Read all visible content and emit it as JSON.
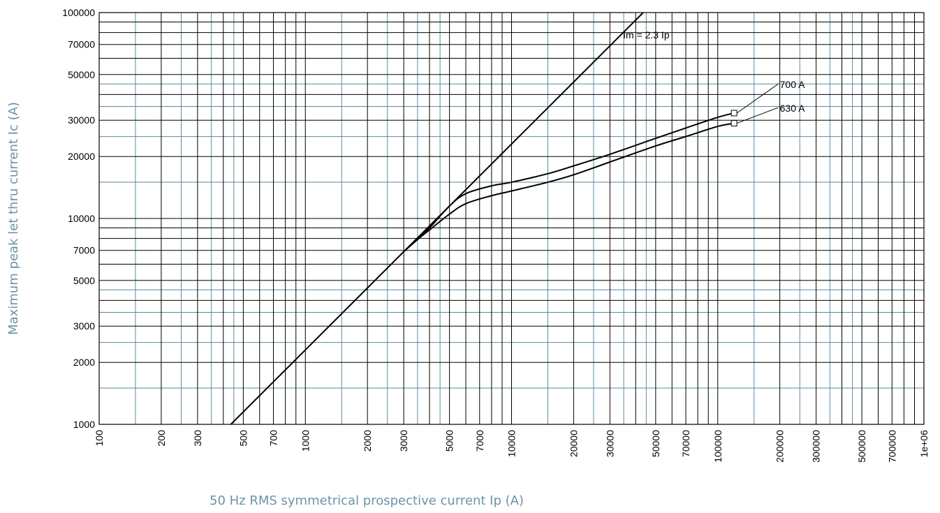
{
  "chart_data": {
    "type": "line",
    "xscale": "log",
    "yscale": "log",
    "xlim": [
      100,
      1000000
    ],
    "ylim": [
      1000,
      100000
    ],
    "xlabel": "50 Hz RMS symmetrical prospective current Ip (A)",
    "ylabel": "Maximum peak let thru current Ic (A)",
    "x_tick_labels": [
      "100",
      "200",
      "300",
      "500",
      "700",
      "1000",
      "2000",
      "3000",
      "5000",
      "7000",
      "10000",
      "20000",
      "30000",
      "50000",
      "70000",
      "100000",
      "200000",
      "300000",
      "500000",
      "700000",
      "1e+06"
    ],
    "y_tick_labels": [
      "100000",
      "70000",
      "50000",
      "30000",
      "20000",
      "10000",
      "7000",
      "5000",
      "3000",
      "2000",
      "1000"
    ],
    "grid": true,
    "colors": {
      "major_grid": "#000000",
      "minor_grid": "#5a8aa0",
      "axis_title": "#6b93a8",
      "curve": "#000000"
    },
    "series": [
      {
        "name": "Im = 2.3 Ip",
        "x": [
          435,
          43500
        ],
        "y": [
          1000,
          100000
        ]
      },
      {
        "name": "700 A",
        "x": [
          3000,
          3500,
          4000,
          5000,
          6000,
          8000,
          10000,
          15000,
          20000,
          30000,
          50000,
          70000,
          100000,
          120000
        ],
        "y": [
          6900,
          8000,
          9000,
          11500,
          13200,
          14400,
          15000,
          16500,
          18000,
          20500,
          24500,
          27500,
          31000,
          32500
        ]
      },
      {
        "name": "630 A",
        "x": [
          3000,
          3500,
          4000,
          5000,
          6000,
          8000,
          10000,
          15000,
          20000,
          30000,
          50000,
          70000,
          100000,
          120000
        ],
        "y": [
          6900,
          7900,
          8800,
          10500,
          11800,
          12900,
          13600,
          15000,
          16300,
          18800,
          22500,
          25000,
          28000,
          29000
        ]
      }
    ],
    "end_markers": [
      {
        "series": "700 A",
        "x": 120000,
        "y": 32500
      },
      {
        "series": "630 A",
        "x": 120000,
        "y": 29000
      }
    ],
    "annotations": [
      {
        "text": "Im = 2.3 Ip",
        "x": 45000,
        "y": 75000
      },
      {
        "text": "700 A",
        "x": 230000,
        "y": 43000
      },
      {
        "text": "630 A",
        "x": 230000,
        "y": 33000
      }
    ]
  }
}
